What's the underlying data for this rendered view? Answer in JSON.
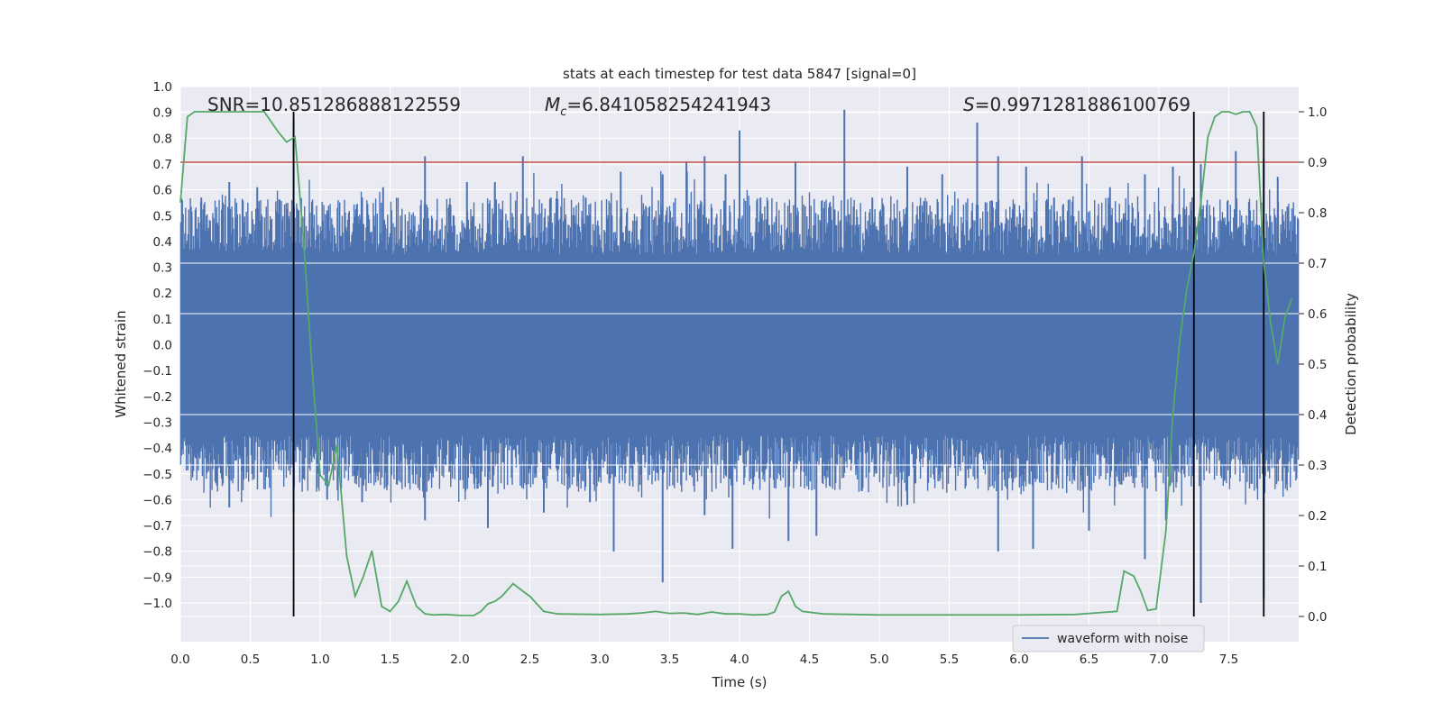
{
  "chart_data": {
    "type": "line",
    "title": "stats at each timestep for test data 5847 [signal=0]",
    "xlabel": "Time (s)",
    "ylabel": "Whitened strain",
    "ylabel_right": "Detection probability",
    "xlim": [
      0,
      8
    ],
    "ylim": [
      -1.15,
      1.0
    ],
    "ylim_right": [
      -0.05,
      1.05
    ],
    "x_ticks": [
      "0.0",
      "0.5",
      "1.0",
      "1.5",
      "2.0",
      "2.5",
      "3.0",
      "3.5",
      "4.0",
      "4.5",
      "5.0",
      "5.5",
      "6.0",
      "6.5",
      "7.0",
      "7.5"
    ],
    "y_ticks": [
      "1.0",
      "0.9",
      "0.8",
      "0.7",
      "0.6",
      "0.5",
      "0.4",
      "0.3",
      "0.2",
      "0.1",
      "0.0",
      "−0.1",
      "−0.2",
      "−0.3",
      "−0.4",
      "−0.5",
      "−0.6",
      "−0.7",
      "−0.8",
      "−0.9",
      "−1.0"
    ],
    "y_right_ticks": [
      "1.0",
      "0.9",
      "0.8",
      "0.7",
      "0.6",
      "0.5",
      "0.4",
      "0.3",
      "0.2",
      "0.1",
      "0.0"
    ],
    "grid": true,
    "legend_position": "lower-right",
    "annotations": {
      "snr": "SNR=10.851286888122559",
      "mc_symbol": "M",
      "mc_sub": "c",
      "mc_value": "=6.841058254241943",
      "s_symbol": "S",
      "s_value": "=0.9971281886100769"
    },
    "threshold_line": {
      "axis": "right",
      "y": 0.9,
      "color": "#c44e52"
    },
    "vertical_markers_x": [
      0.81,
      7.25,
      7.75
    ],
    "series": [
      {
        "name": "waveform with noise",
        "axis": "left",
        "color": "#4c72b0",
        "style": "dense noise waveform",
        "typical_envelope": [
          -0.35,
          0.35
        ],
        "peaks_x": [
          0.15,
          0.35,
          0.55,
          0.81,
          1.05,
          1.3,
          1.45,
          1.75,
          2.05,
          2.25,
          2.45,
          2.65,
          2.9,
          3.15,
          3.45,
          3.62,
          3.75,
          3.9,
          4.0,
          4.15,
          4.4,
          4.75,
          4.95,
          5.2,
          5.45,
          5.7,
          5.85,
          6.05,
          6.25,
          6.45,
          6.65,
          6.9,
          7.1,
          7.3,
          7.55,
          7.75,
          7.85
        ],
        "peaks_y": [
          0.57,
          0.63,
          0.61,
          0.87,
          0.52,
          0.57,
          0.61,
          0.73,
          0.63,
          0.63,
          0.73,
          0.57,
          0.57,
          0.67,
          0.66,
          0.71,
          0.73,
          0.66,
          0.83,
          0.57,
          0.71,
          0.91,
          0.57,
          0.69,
          0.66,
          0.86,
          0.73,
          0.69,
          0.57,
          0.73,
          0.61,
          0.66,
          0.69,
          0.7,
          0.75,
          0.72,
          0.65
        ],
        "troughs_x": [
          0.35,
          0.81,
          1.05,
          1.3,
          1.75,
          2.2,
          2.6,
          2.93,
          3.1,
          3.45,
          3.75,
          3.95,
          4.35,
          4.55,
          5.2,
          5.85,
          6.1,
          6.5,
          6.9,
          7.05,
          7.3,
          7.75
        ],
        "troughs_y": [
          -0.63,
          -0.65,
          -0.6,
          -0.61,
          -0.68,
          -0.71,
          -0.65,
          -0.61,
          -0.8,
          -0.92,
          -0.66,
          -0.79,
          -0.76,
          -0.74,
          -0.62,
          -0.8,
          -0.79,
          -0.72,
          -0.83,
          -0.68,
          -1.0,
          -0.98
        ]
      },
      {
        "name": "detection probability",
        "axis": "right",
        "color": "#55a868",
        "x": [
          0.0,
          0.05,
          0.1,
          0.2,
          0.3,
          0.4,
          0.5,
          0.6,
          0.7,
          0.76,
          0.82,
          0.88,
          0.94,
          1.0,
          1.06,
          1.12,
          1.19,
          1.25,
          1.31,
          1.37,
          1.44,
          1.5,
          1.56,
          1.62,
          1.69,
          1.75,
          1.81,
          1.9,
          2.0,
          2.1,
          2.15,
          2.2,
          2.25,
          2.3,
          2.38,
          2.45,
          2.5,
          2.6,
          2.7,
          3.0,
          3.2,
          3.3,
          3.4,
          3.5,
          3.6,
          3.7,
          3.8,
          3.9,
          4.0,
          4.1,
          4.2,
          4.25,
          4.3,
          4.35,
          4.4,
          4.45,
          4.6,
          5.0,
          5.5,
          6.0,
          6.4,
          6.6,
          6.7,
          6.75,
          6.82,
          6.87,
          6.92,
          6.98,
          7.05,
          7.1,
          7.15,
          7.2,
          7.25,
          7.3,
          7.35,
          7.4,
          7.45,
          7.5,
          7.55,
          7.6,
          7.65,
          7.7,
          7.75,
          7.8,
          7.85,
          7.9,
          7.95
        ],
        "values": [
          0.82,
          0.99,
          1.0,
          1.0,
          1.0,
          1.0,
          1.0,
          1.0,
          0.96,
          0.94,
          0.95,
          0.75,
          0.5,
          0.28,
          0.26,
          0.34,
          0.12,
          0.04,
          0.08,
          0.13,
          0.02,
          0.01,
          0.03,
          0.07,
          0.02,
          0.005,
          0.003,
          0.004,
          0.002,
          0.002,
          0.01,
          0.025,
          0.03,
          0.04,
          0.065,
          0.05,
          0.04,
          0.01,
          0.005,
          0.004,
          0.005,
          0.007,
          0.01,
          0.006,
          0.007,
          0.004,
          0.009,
          0.005,
          0.005,
          0.003,
          0.004,
          0.009,
          0.04,
          0.05,
          0.02,
          0.01,
          0.005,
          0.003,
          0.003,
          0.003,
          0.004,
          0.008,
          0.01,
          0.09,
          0.08,
          0.05,
          0.012,
          0.015,
          0.17,
          0.4,
          0.55,
          0.65,
          0.72,
          0.82,
          0.95,
          0.99,
          1.0,
          1.0,
          0.995,
          1.0,
          1.0,
          0.97,
          0.7,
          0.58,
          0.5,
          0.59,
          0.63
        ]
      }
    ]
  }
}
